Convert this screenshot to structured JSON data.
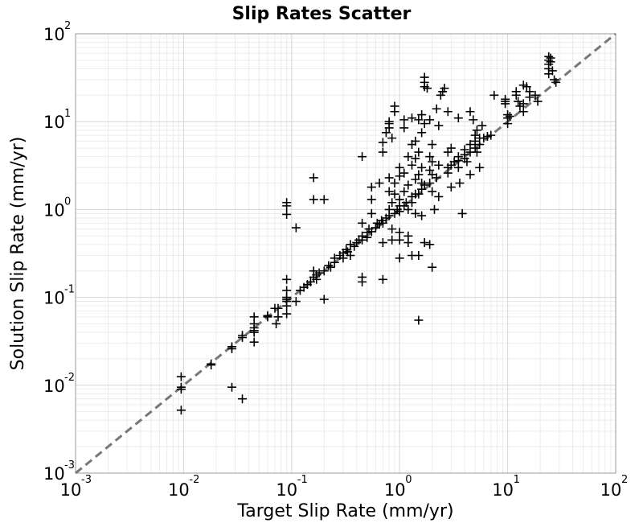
{
  "chart_data": {
    "type": "scatter",
    "title": "Slip Rates Scatter",
    "xlabel": "Target Slip Rate (mm/yr)",
    "ylabel": "Solution Slip Rate (mm/yr)",
    "xscale": "log",
    "yscale": "log",
    "xlim": [
      0.001,
      100
    ],
    "ylim": [
      0.001,
      100
    ],
    "grid": true,
    "marker": "plus",
    "marker_color": "#000000",
    "reference_line": {
      "style": "dashed",
      "color": "#777777",
      "x": [
        0.001,
        100
      ],
      "y": [
        0.001,
        100
      ]
    },
    "x_ticks": [
      {
        "base": "10",
        "exp": "-3"
      },
      {
        "base": "10",
        "exp": "-2"
      },
      {
        "base": "10",
        "exp": "-1"
      },
      {
        "base": "10",
        "exp": "0"
      },
      {
        "base": "10",
        "exp": "1"
      },
      {
        "base": "10",
        "exp": "2"
      }
    ],
    "y_ticks": [
      {
        "base": "10",
        "exp": "-3"
      },
      {
        "base": "10",
        "exp": "-2"
      },
      {
        "base": "10",
        "exp": "-1"
      },
      {
        "base": "10",
        "exp": "0"
      },
      {
        "base": "10",
        "exp": "1"
      },
      {
        "base": "10",
        "exp": "2"
      }
    ],
    "points": [
      [
        0.0095,
        0.0125
      ],
      [
        0.0095,
        0.0095
      ],
      [
        0.0095,
        0.009
      ],
      [
        0.0095,
        0.0052
      ],
      [
        0.018,
        0.0175
      ],
      [
        0.018,
        0.017
      ],
      [
        0.028,
        0.0275
      ],
      [
        0.028,
        0.026
      ],
      [
        0.028,
        0.0095
      ],
      [
        0.035,
        0.037
      ],
      [
        0.035,
        0.035
      ],
      [
        0.035,
        0.007
      ],
      [
        0.045,
        0.06
      ],
      [
        0.045,
        0.05
      ],
      [
        0.045,
        0.045
      ],
      [
        0.045,
        0.042
      ],
      [
        0.045,
        0.04
      ],
      [
        0.045,
        0.031
      ],
      [
        0.06,
        0.062
      ],
      [
        0.06,
        0.06
      ],
      [
        0.07,
        0.075
      ],
      [
        0.075,
        0.075
      ],
      [
        0.075,
        0.06
      ],
      [
        0.072,
        0.05
      ],
      [
        0.09,
        0.16
      ],
      [
        0.09,
        0.12
      ],
      [
        0.09,
        0.1
      ],
      [
        0.09,
        0.095
      ],
      [
        0.09,
        0.09
      ],
      [
        0.09,
        0.08
      ],
      [
        0.09,
        0.065
      ],
      [
        0.09,
        1.2
      ],
      [
        0.09,
        1.1
      ],
      [
        0.09,
        0.88
      ],
      [
        0.11,
        0.09
      ],
      [
        0.12,
        0.12
      ],
      [
        0.13,
        0.13
      ],
      [
        0.14,
        0.14
      ],
      [
        0.11,
        0.62
      ],
      [
        0.15,
        0.15
      ],
      [
        0.16,
        0.2
      ],
      [
        0.16,
        0.17
      ],
      [
        0.17,
        0.16
      ],
      [
        0.17,
        0.18
      ],
      [
        0.16,
        2.3
      ],
      [
        0.16,
        1.3
      ],
      [
        0.18,
        0.19
      ],
      [
        0.2,
        0.2
      ],
      [
        0.2,
        1.3
      ],
      [
        0.2,
        0.095
      ],
      [
        0.22,
        0.23
      ],
      [
        0.23,
        0.22
      ],
      [
        0.25,
        0.25
      ],
      [
        0.25,
        0.28
      ],
      [
        0.28,
        0.3
      ],
      [
        0.3,
        0.32
      ],
      [
        0.3,
        0.28
      ],
      [
        0.32,
        0.35
      ],
      [
        0.33,
        0.33
      ],
      [
        0.35,
        0.4
      ],
      [
        0.35,
        0.3
      ],
      [
        0.38,
        0.38
      ],
      [
        0.4,
        0.42
      ],
      [
        0.42,
        0.45
      ],
      [
        0.45,
        0.5
      ],
      [
        0.45,
        0.45
      ],
      [
        0.45,
        0.17
      ],
      [
        0.45,
        0.15
      ],
      [
        0.45,
        0.7
      ],
      [
        0.45,
        4.0
      ],
      [
        0.5,
        0.55
      ],
      [
        0.5,
        0.48
      ],
      [
        0.52,
        0.6
      ],
      [
        0.55,
        0.56
      ],
      [
        0.55,
        0.9
      ],
      [
        0.55,
        1.8
      ],
      [
        0.55,
        1.3
      ],
      [
        0.6,
        0.62
      ],
      [
        0.62,
        0.7
      ],
      [
        0.65,
        0.68
      ],
      [
        0.65,
        2.0
      ],
      [
        0.68,
        0.75
      ],
      [
        0.7,
        0.7
      ],
      [
        0.7,
        0.16
      ],
      [
        0.7,
        0.42
      ],
      [
        0.7,
        4.5
      ],
      [
        0.7,
        5.8
      ],
      [
        0.75,
        0.8
      ],
      [
        0.8,
        0.85
      ],
      [
        0.8,
        1.0
      ],
      [
        0.8,
        1.6
      ],
      [
        0.8,
        2.3
      ],
      [
        0.85,
        1.2
      ],
      [
        0.85,
        0.6
      ],
      [
        0.85,
        0.45
      ],
      [
        0.9,
        0.9
      ],
      [
        0.9,
        1.5
      ],
      [
        0.9,
        2.0
      ],
      [
        0.95,
        1.0
      ],
      [
        1.0,
        1.1
      ],
      [
        1.0,
        0.95
      ],
      [
        1.0,
        1.3
      ],
      [
        1.0,
        2.4
      ],
      [
        1.0,
        3.0
      ],
      [
        1.0,
        0.55
      ],
      [
        1.0,
        0.45
      ],
      [
        1.0,
        0.28
      ],
      [
        0.9,
        15
      ],
      [
        0.9,
        13
      ],
      [
        0.8,
        10
      ],
      [
        0.8,
        9.5
      ],
      [
        0.75,
        7.5
      ],
      [
        0.8,
        8.5
      ],
      [
        0.85,
        6.5
      ],
      [
        1.1,
        1.1
      ],
      [
        1.1,
        1.6
      ],
      [
        1.1,
        2.6
      ],
      [
        1.1,
        8.5
      ],
      [
        1.1,
        10.5
      ],
      [
        1.15,
        1.2
      ],
      [
        1.2,
        1.0
      ],
      [
        1.2,
        1.9
      ],
      [
        1.2,
        4.0
      ],
      [
        1.2,
        0.5
      ],
      [
        1.2,
        0.42
      ],
      [
        1.3,
        1.4
      ],
      [
        1.3,
        1.2
      ],
      [
        1.3,
        3.2
      ],
      [
        1.3,
        5.5
      ],
      [
        1.3,
        11
      ],
      [
        1.3,
        0.3
      ],
      [
        1.4,
        1.5
      ],
      [
        1.4,
        2.2
      ],
      [
        1.4,
        3.8
      ],
      [
        1.4,
        6.0
      ],
      [
        1.4,
        0.9
      ],
      [
        1.5,
        1.5
      ],
      [
        1.5,
        2.5
      ],
      [
        1.5,
        4.5
      ],
      [
        1.5,
        10.5
      ],
      [
        1.5,
        0.055
      ],
      [
        1.5,
        0.3
      ],
      [
        1.6,
        1.7
      ],
      [
        1.6,
        2.0
      ],
      [
        1.6,
        3.0
      ],
      [
        1.6,
        7.5
      ],
      [
        1.6,
        12
      ],
      [
        1.6,
        0.85
      ],
      [
        1.7,
        32
      ],
      [
        1.7,
        25
      ],
      [
        1.7,
        28
      ],
      [
        1.8,
        24
      ],
      [
        1.7,
        1.9
      ],
      [
        1.7,
        9.5
      ],
      [
        1.7,
        0.42
      ],
      [
        1.9,
        2.0
      ],
      [
        1.9,
        2.8
      ],
      [
        1.9,
        4.0
      ],
      [
        1.9,
        10.5
      ],
      [
        1.9,
        0.4
      ],
      [
        2.0,
        1.6
      ],
      [
        2.0,
        2.5
      ],
      [
        2.0,
        3.5
      ],
      [
        2.0,
        5.5
      ],
      [
        2.0,
        0.22
      ],
      [
        2.1,
        1.0
      ],
      [
        2.2,
        2.3
      ],
      [
        2.2,
        14
      ],
      [
        2.3,
        3.2
      ],
      [
        2.3,
        9.0
      ],
      [
        2.3,
        1.4
      ],
      [
        2.4,
        20
      ],
      [
        2.5,
        22
      ],
      [
        2.6,
        24
      ],
      [
        2.8,
        3.0
      ],
      [
        2.8,
        2.6
      ],
      [
        2.8,
        4.5
      ],
      [
        2.8,
        13
      ],
      [
        3.0,
        3.2
      ],
      [
        3.0,
        5.0
      ],
      [
        3.2,
        3.5
      ],
      [
        3.0,
        1.8
      ],
      [
        3.5,
        3.6
      ],
      [
        3.5,
        4.0
      ],
      [
        3.5,
        3.0
      ],
      [
        3.5,
        11
      ],
      [
        3.6,
        2.0
      ],
      [
        3.8,
        0.9
      ],
      [
        4.0,
        4.2
      ],
      [
        4.0,
        4.8
      ],
      [
        4.0,
        3.8
      ],
      [
        4.2,
        3.5
      ],
      [
        4.5,
        4.5
      ],
      [
        4.5,
        5.5
      ],
      [
        4.5,
        13
      ],
      [
        4.5,
        2.5
      ],
      [
        4.8,
        10.5
      ],
      [
        5.0,
        5.0
      ],
      [
        5.0,
        6.0
      ],
      [
        5.0,
        7.0
      ],
      [
        5.2,
        8.0
      ],
      [
        5.2,
        4.5
      ],
      [
        5.5,
        5.5
      ],
      [
        5.5,
        6.5
      ],
      [
        5.5,
        3.0
      ],
      [
        5.8,
        9.0
      ],
      [
        6.0,
        6.5
      ],
      [
        6.5,
        6.8
      ],
      [
        7.0,
        7.0
      ],
      [
        7.5,
        20
      ],
      [
        9.5,
        17
      ],
      [
        9.5,
        18
      ],
      [
        9.5,
        16
      ],
      [
        10,
        12
      ],
      [
        10,
        9.5
      ],
      [
        10,
        11
      ],
      [
        10.5,
        11.5
      ],
      [
        12,
        22
      ],
      [
        12,
        20
      ],
      [
        12.5,
        17
      ],
      [
        13,
        15
      ],
      [
        14,
        16
      ],
      [
        14,
        13
      ],
      [
        14,
        26
      ],
      [
        15,
        25
      ],
      [
        16,
        19
      ],
      [
        16,
        22
      ],
      [
        18,
        20
      ],
      [
        19,
        17
      ],
      [
        24,
        55
      ],
      [
        24,
        50
      ],
      [
        24,
        45
      ],
      [
        24,
        40
      ],
      [
        24,
        35
      ],
      [
        25,
        53
      ],
      [
        25,
        48
      ],
      [
        26,
        38
      ],
      [
        27,
        30
      ],
      [
        28,
        28
      ]
    ]
  }
}
